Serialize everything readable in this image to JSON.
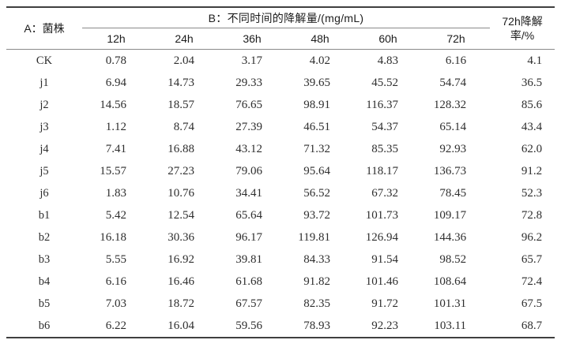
{
  "chart_data": {
    "type": "table",
    "strain_column_header": "A：菌株",
    "group_header": "B：不同时间的降解量/(mg/mL)",
    "rate_header_lines": [
      "72h降解",
      "率/%"
    ],
    "time_columns": [
      "12h",
      "24h",
      "36h",
      "48h",
      "60h",
      "72h"
    ],
    "rows": [
      {
        "strain": "CK",
        "values": [
          0.78,
          2.04,
          3.17,
          4.02,
          4.83,
          6.16
        ],
        "rate_72h_percent": 4.1
      },
      {
        "strain": "j1",
        "values": [
          6.94,
          14.73,
          29.33,
          39.65,
          45.52,
          54.74
        ],
        "rate_72h_percent": 36.5
      },
      {
        "strain": "j2",
        "values": [
          14.56,
          18.57,
          76.65,
          98.91,
          116.37,
          128.32
        ],
        "rate_72h_percent": 85.6
      },
      {
        "strain": "j3",
        "values": [
          1.12,
          8.74,
          27.39,
          46.51,
          54.37,
          65.14
        ],
        "rate_72h_percent": 43.4
      },
      {
        "strain": "j4",
        "values": [
          7.41,
          16.88,
          43.12,
          71.32,
          85.35,
          92.93
        ],
        "rate_72h_percent": 62.0
      },
      {
        "strain": "j5",
        "values": [
          15.57,
          27.23,
          79.06,
          95.64,
          118.17,
          136.73
        ],
        "rate_72h_percent": 91.2
      },
      {
        "strain": "j6",
        "values": [
          1.83,
          10.76,
          34.41,
          56.52,
          67.32,
          78.45
        ],
        "rate_72h_percent": 52.3
      },
      {
        "strain": "b1",
        "values": [
          5.42,
          12.54,
          65.64,
          93.72,
          101.73,
          109.17
        ],
        "rate_72h_percent": 72.8
      },
      {
        "strain": "b2",
        "values": [
          16.18,
          30.36,
          96.17,
          119.81,
          126.94,
          144.36
        ],
        "rate_72h_percent": 96.2
      },
      {
        "strain": "b3",
        "values": [
          5.55,
          16.92,
          39.81,
          84.33,
          91.54,
          98.52
        ],
        "rate_72h_percent": 65.7
      },
      {
        "strain": "b4",
        "values": [
          6.16,
          16.46,
          61.68,
          91.82,
          101.46,
          108.64
        ],
        "rate_72h_percent": 72.4
      },
      {
        "strain": "b5",
        "values": [
          7.03,
          18.72,
          67.57,
          82.35,
          91.72,
          101.31
        ],
        "rate_72h_percent": 67.5
      },
      {
        "strain": "b6",
        "values": [
          6.22,
          16.04,
          59.56,
          78.93,
          92.23,
          103.11
        ],
        "rate_72h_percent": 68.7
      }
    ]
  },
  "colors": {
    "background": "#ffffff",
    "heavy_rule": "#3f3f3f",
    "light_rule": "#8a8a8a",
    "text": "#2e2e2e"
  },
  "value_decimals": 2,
  "rate_decimals": 1
}
